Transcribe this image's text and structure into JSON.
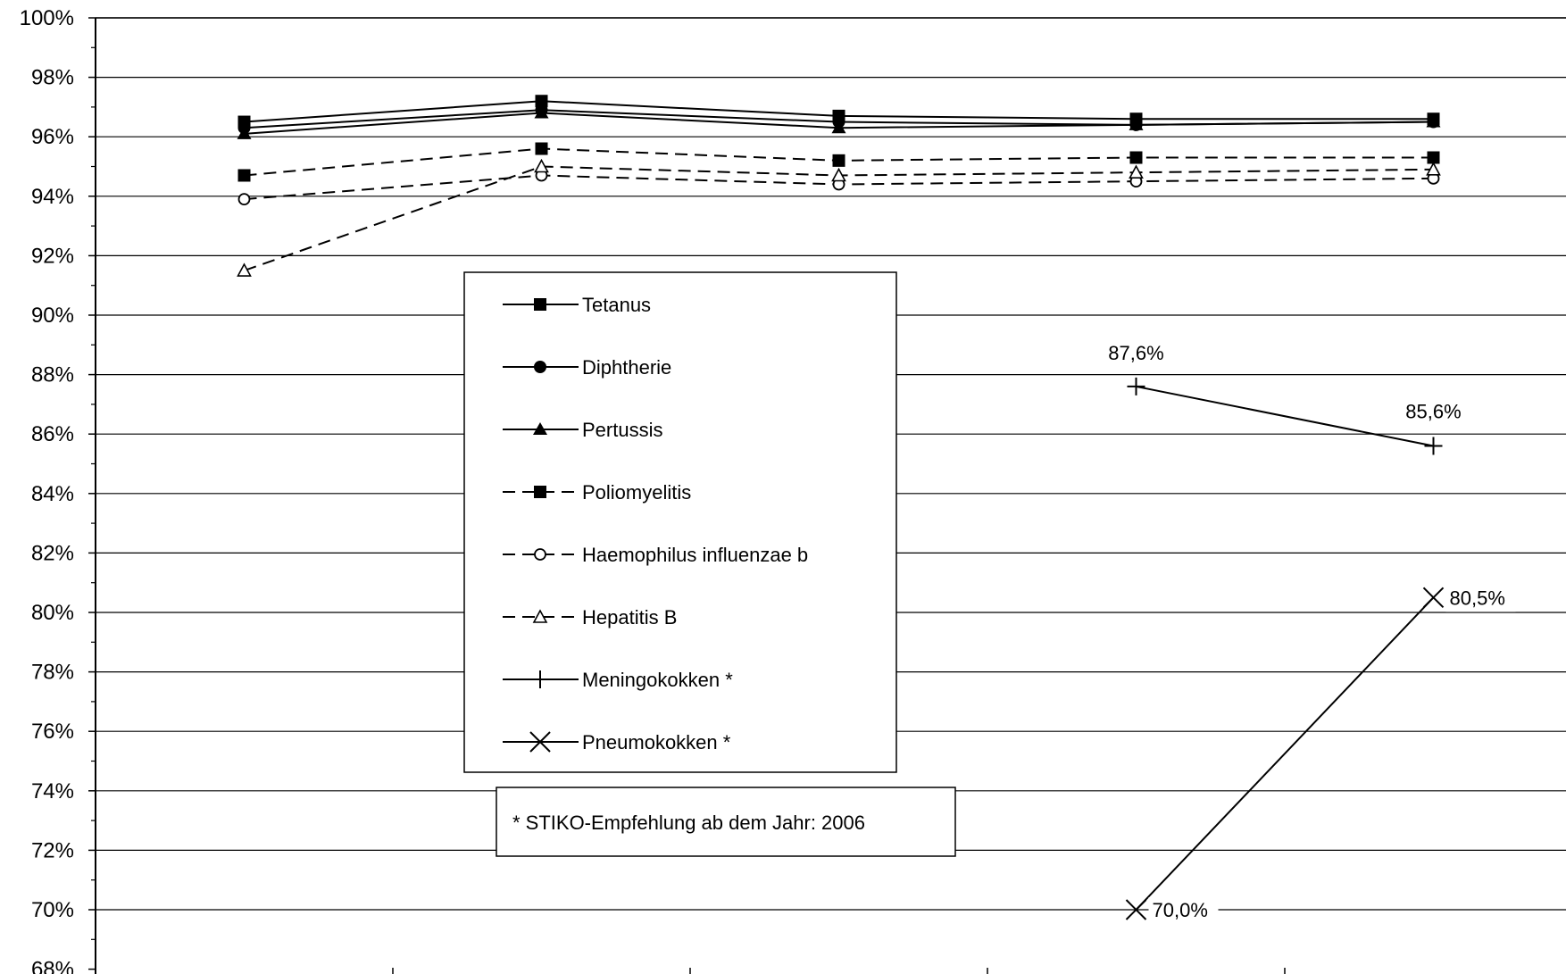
{
  "chart_data": {
    "type": "line",
    "x": [
      1,
      2,
      3,
      4,
      5
    ],
    "ylim": [
      68,
      100
    ],
    "yticks": [
      "68%",
      "70%",
      "72%",
      "74%",
      "76%",
      "78%",
      "80%",
      "82%",
      "84%",
      "86%",
      "88%",
      "90%",
      "92%",
      "94%",
      "96%",
      "98%",
      "100%"
    ],
    "grid": true,
    "legend_position": "center-left",
    "series": [
      {
        "name": "Tetanus",
        "values": [
          96.5,
          97.2,
          96.7,
          96.6,
          96.6
        ],
        "line": "solid",
        "marker": "square-filled"
      },
      {
        "name": "Diphtherie",
        "values": [
          96.3,
          96.9,
          96.5,
          96.4,
          96.5
        ],
        "line": "solid",
        "marker": "circle-filled"
      },
      {
        "name": "Pertussis",
        "values": [
          96.1,
          96.8,
          96.3,
          96.4,
          96.5
        ],
        "line": "solid",
        "marker": "triangle-filled"
      },
      {
        "name": "Poliomyelitis",
        "values": [
          94.7,
          95.6,
          95.2,
          95.3,
          95.3
        ],
        "line": "dashed",
        "marker": "square-filled"
      },
      {
        "name": "Haemophilus influenzae b",
        "values": [
          93.9,
          94.7,
          94.4,
          94.5,
          94.6
        ],
        "line": "dashed",
        "marker": "circle-open"
      },
      {
        "name": "Hepatitis B",
        "values": [
          91.5,
          95.0,
          94.7,
          94.8,
          94.9
        ],
        "line": "dashed",
        "marker": "triangle-open"
      },
      {
        "name": "Meningokokken *",
        "values": [
          null,
          null,
          null,
          87.6,
          85.6
        ],
        "line": "solid",
        "marker": "plus"
      },
      {
        "name": "Pneumokokken *",
        "values": [
          null,
          null,
          null,
          70.0,
          80.5
        ],
        "line": "solid",
        "marker": "x"
      }
    ],
    "data_labels": [
      {
        "series": "Meningokokken *",
        "x": 4,
        "text": "87,6%"
      },
      {
        "series": "Meningokokken *",
        "x": 5,
        "text": "85,6%"
      },
      {
        "series": "Pneumokokken *",
        "x": 4,
        "text": "70,0%"
      },
      {
        "series": "Pneumokokken *",
        "x": 5,
        "text": "80,5%"
      }
    ],
    "note": "*  STIKO-Empfehlung ab dem Jahr: 2006",
    "colors": {
      "line": "#000000",
      "grid": "#000000",
      "background": "#ffffff"
    }
  }
}
